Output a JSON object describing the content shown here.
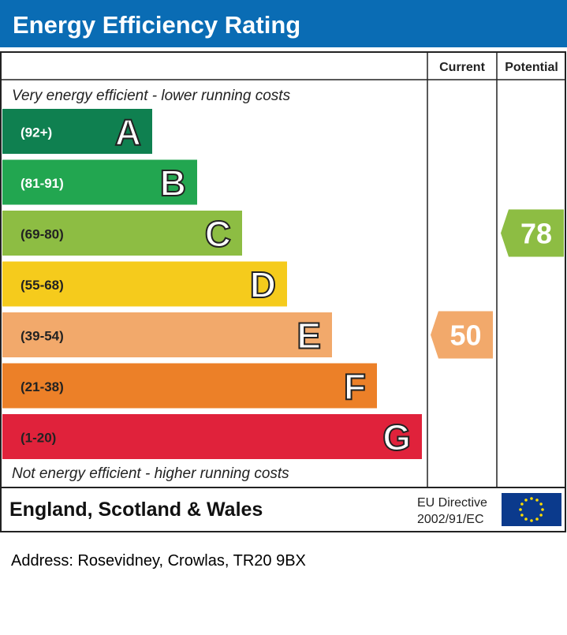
{
  "chart_data": {
    "type": "bar",
    "title": "Energy Efficiency Rating",
    "columns": {
      "current": "Current",
      "potential": "Potential"
    },
    "top_note": "Very energy efficient - lower running costs",
    "bottom_note": "Not energy efficient - higher running costs",
    "bands": [
      {
        "letter": "A",
        "range": "(92+)",
        "color": "#0f8050"
      },
      {
        "letter": "B",
        "range": "(81-91)",
        "color": "#22a650"
      },
      {
        "letter": "C",
        "range": "(69-80)",
        "color": "#8dbd43"
      },
      {
        "letter": "D",
        "range": "(55-68)",
        "color": "#f5cb1c"
      },
      {
        "letter": "E",
        "range": "(39-54)",
        "color": "#f2a96b"
      },
      {
        "letter": "F",
        "range": "(21-38)",
        "color": "#ec8028"
      },
      {
        "letter": "G",
        "range": "(1-20)",
        "color": "#e0223b"
      }
    ],
    "current": {
      "value": "50",
      "band": "E",
      "color": "#f2a96b"
    },
    "potential": {
      "value": "78",
      "band": "C",
      "color": "#8dbd43"
    },
    "footer": {
      "region": "England, Scotland & Wales",
      "directive_line1": "EU Directive",
      "directive_line2": "2002/91/EC"
    },
    "header_color": "#0a6cb4"
  },
  "address": "Address: Rosevidney, Crowlas, TR20 9BX"
}
